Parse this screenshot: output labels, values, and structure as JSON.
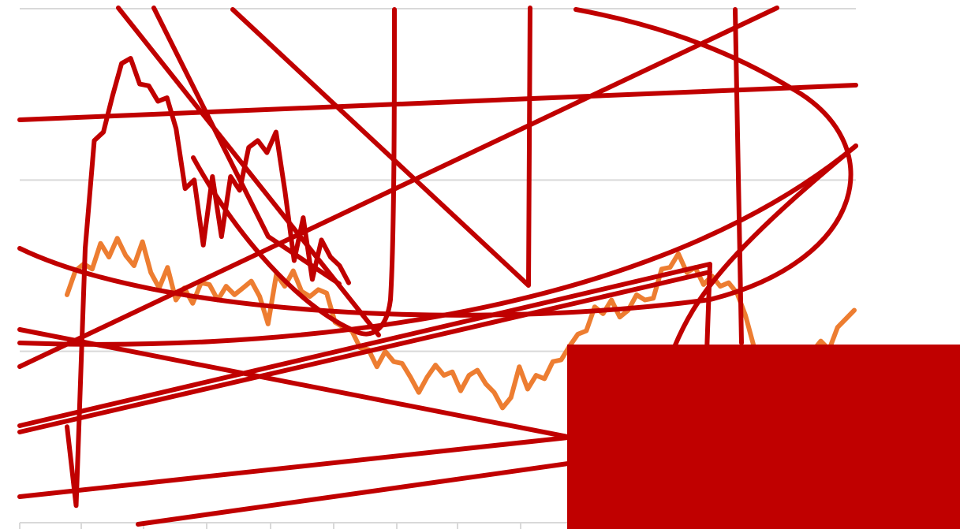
{
  "chart_data": {
    "type": "line",
    "title": "",
    "xlabel": "",
    "ylabel": "",
    "grid": true,
    "ylim": [
      0,
      3
    ],
    "series": [
      {
        "color": "#ed7d31",
        "values": [
          1.33,
          1.47,
          1.51,
          1.48,
          1.63,
          1.55,
          1.66,
          1.56,
          1.5,
          1.64,
          1.46,
          1.37,
          1.49,
          1.3,
          1.37,
          1.28,
          1.4,
          1.39,
          1.3,
          1.38,
          1.33,
          1.37,
          1.41,
          1.32,
          1.16,
          1.45,
          1.38,
          1.47,
          1.35,
          1.32,
          1.36,
          1.34,
          1.17,
          1.14,
          1.12,
          1.02,
          1.01,
          0.91,
          1.0,
          0.94,
          0.93,
          0.85,
          0.76,
          0.85,
          0.92,
          0.86,
          0.88,
          0.77,
          0.86,
          0.89,
          0.81,
          0.76,
          0.67,
          0.73,
          0.91,
          0.78,
          0.86,
          0.84,
          0.94,
          0.95,
          1.03,
          1.1,
          1.12,
          1.26,
          1.22,
          1.3,
          1.2,
          1.24,
          1.33,
          1.3,
          1.31,
          1.48,
          1.49,
          1.57,
          1.46,
          1.49,
          1.39,
          1.44,
          1.38,
          1.4,
          1.34,
          1.21,
          1.03,
          0.99,
          0.94,
          0.9,
          0.91,
          0.98,
          0.96,
          1.0,
          1.06,
          1.01,
          1.14,
          1.19,
          1.24
        ]
      },
      {
        "color": "#c00000",
        "values": [
          0.56,
          0.1,
          1.6,
          2.23,
          2.28,
          2.49,
          2.68,
          2.71,
          2.56,
          2.55,
          2.46,
          2.48,
          2.3,
          1.95,
          2.0,
          1.62,
          2.02,
          1.67,
          2.02,
          1.94,
          2.19,
          2.23,
          2.16,
          2.28,
          1.93,
          1.53,
          1.78,
          1.42,
          1.65,
          1.55,
          1.5,
          1.4
        ]
      }
    ]
  }
}
